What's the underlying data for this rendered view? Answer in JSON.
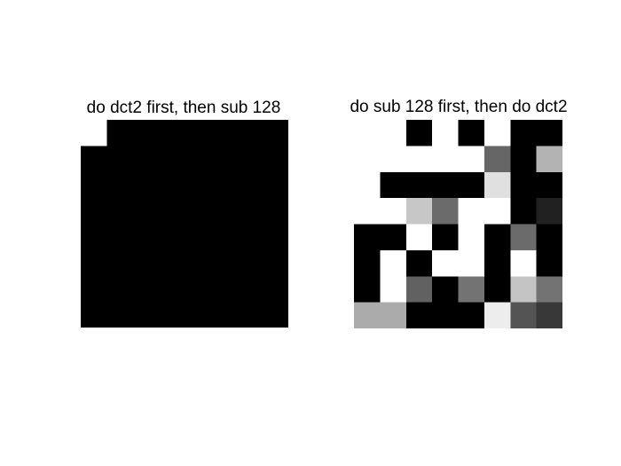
{
  "chart_data": [
    {
      "type": "heatmap",
      "title": "do dct2 first, then sub 128",
      "colormap": "gray",
      "rows": 8,
      "cols": 8,
      "values": [
        [
          1,
          0,
          0,
          0,
          0,
          0,
          0,
          0
        ],
        [
          0,
          0,
          0,
          0,
          0,
          0,
          0,
          0
        ],
        [
          0,
          0,
          0,
          0,
          0,
          0,
          0,
          0
        ],
        [
          0,
          0,
          0,
          0,
          0,
          0,
          0,
          0
        ],
        [
          0,
          0,
          0,
          0,
          0,
          0,
          0,
          0
        ],
        [
          0,
          0,
          0,
          0,
          0,
          0,
          0,
          0
        ],
        [
          0,
          0,
          0,
          0,
          0,
          0,
          0,
          0
        ],
        [
          0,
          0,
          0,
          0,
          0,
          0,
          0,
          0
        ]
      ]
    },
    {
      "type": "heatmap",
      "title": "do sub 128 first, then do dct2",
      "colormap": "gray",
      "rows": 8,
      "cols": 8,
      "values": [
        [
          1.0,
          1.0,
          0.0,
          1.0,
          0.0,
          1.0,
          0.0,
          0.0
        ],
        [
          1.0,
          1.0,
          1.0,
          1.0,
          1.0,
          0.4,
          0.0,
          0.7
        ],
        [
          1.0,
          0.0,
          0.0,
          0.0,
          0.0,
          0.88,
          0.0,
          0.0
        ],
        [
          1.0,
          1.0,
          0.78,
          0.42,
          1.0,
          1.0,
          0.0,
          0.13
        ],
        [
          0.0,
          0.0,
          1.0,
          0.0,
          1.0,
          0.0,
          0.42,
          0.0
        ],
        [
          0.0,
          1.0,
          0.0,
          1.0,
          1.0,
          0.0,
          1.0,
          0.0
        ],
        [
          0.0,
          1.0,
          0.38,
          0.0,
          0.45,
          0.0,
          0.77,
          0.45
        ],
        [
          0.67,
          0.67,
          0.0,
          0.0,
          0.0,
          0.93,
          0.33,
          0.22
        ]
      ]
    }
  ]
}
